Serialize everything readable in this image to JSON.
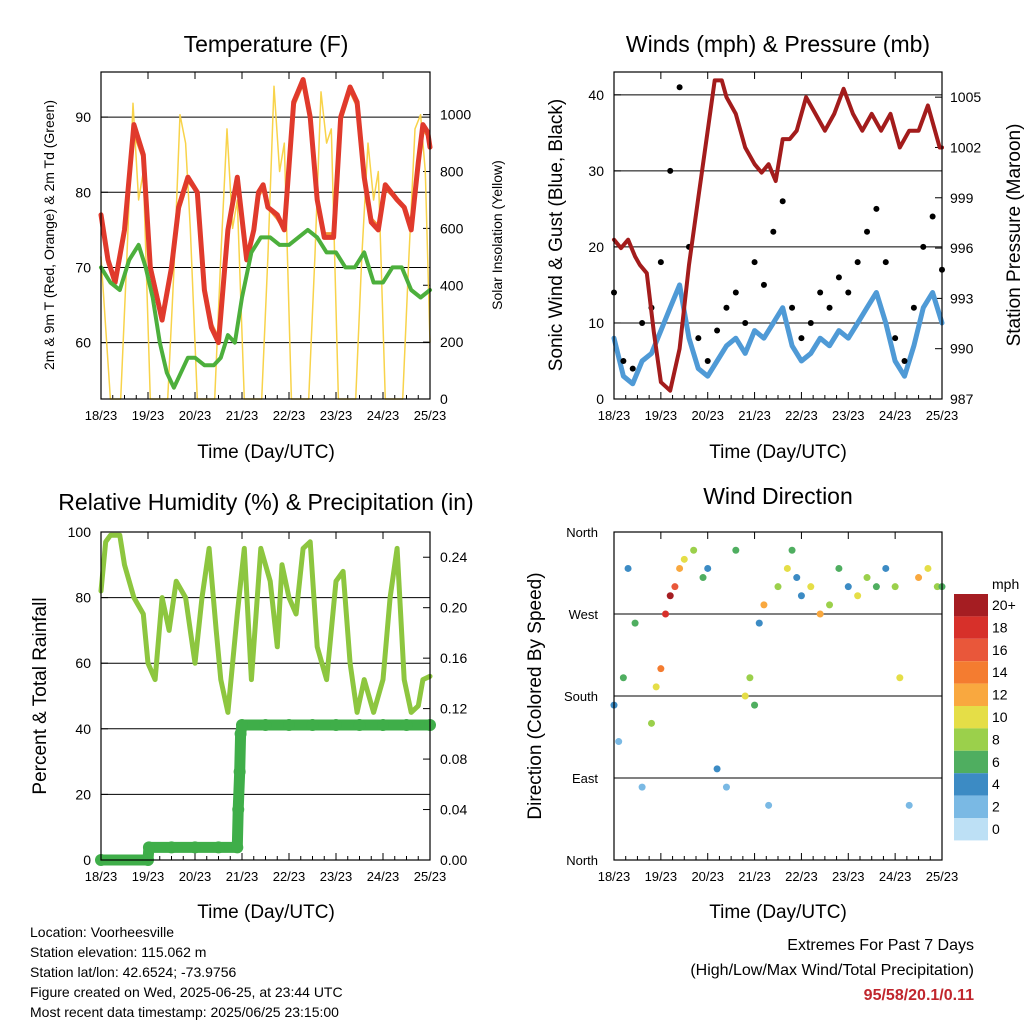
{
  "chart_data": [
    {
      "type": "line",
      "title": "Temperature (F)",
      "xlabel": "Time (Day/UTC)",
      "ylabel": "2m & 9m T (Red, Orange) & 2m Td (Green)",
      "ylabel_right": "Solar Insolation (Yellow)",
      "x_ticks": [
        "18/23",
        "19/23",
        "20/23",
        "21/23",
        "22/23",
        "23/23",
        "24/23",
        "25/23"
      ],
      "xlim": [
        0,
        7
      ],
      "ylim": [
        52.5,
        96
      ],
      "y_ticks": [
        60,
        70,
        80,
        90
      ],
      "y2lim": [
        0,
        1150
      ],
      "y2_ticks": [
        0,
        200,
        400,
        600,
        800,
        1000
      ],
      "grid": true,
      "series": [
        {
          "name": "2m T",
          "color": "#e03a2c",
          "axis": "left",
          "x": [
            0,
            0.15,
            0.3,
            0.5,
            0.7,
            0.9,
            1.05,
            1.3,
            1.5,
            1.65,
            1.85,
            2.05,
            2.2,
            2.35,
            2.5,
            2.7,
            2.9,
            3.1,
            3.25,
            3.35,
            3.45,
            3.55,
            3.75,
            3.9,
            4.1,
            4.3,
            4.45,
            4.6,
            4.75,
            4.95,
            5.1,
            5.3,
            5.45,
            5.6,
            5.75,
            5.9,
            6.05,
            6.3,
            6.45,
            6.6,
            6.75,
            6.85,
            6.95,
            7
          ],
          "y": [
            77,
            71,
            68,
            75,
            89,
            85,
            70,
            63,
            70,
            78,
            82,
            80,
            67,
            62,
            60,
            75,
            82,
            71,
            75,
            80,
            81,
            78,
            77,
            75,
            92,
            95,
            90,
            79,
            74,
            74,
            90,
            94,
            92,
            82,
            76,
            75,
            81,
            79,
            78,
            75,
            84,
            89,
            88,
            86
          ]
        },
        {
          "name": "9m T",
          "color": "#f39433",
          "axis": "left",
          "x": [
            0,
            0.15,
            0.3,
            0.5,
            0.7,
            0.9,
            1.05,
            1.3,
            1.5,
            1.65,
            1.85,
            2.05,
            2.2,
            2.35,
            2.5,
            2.7,
            2.9,
            3.1,
            3.25,
            3.35,
            3.45,
            3.55,
            3.75,
            3.9,
            4.1,
            4.3,
            4.45,
            4.6,
            4.75,
            4.95,
            5.1,
            5.3,
            5.45,
            5.6,
            5.75,
            5.9,
            6.05,
            6.3,
            6.45,
            6.6,
            6.75,
            6.85,
            6.95,
            7
          ],
          "y": [
            76.5,
            70.5,
            68.5,
            74.5,
            88,
            84.5,
            70.5,
            63.5,
            70,
            77.5,
            81.5,
            80,
            67.5,
            62.5,
            60.5,
            75,
            81.5,
            71.5,
            75,
            79.5,
            80.5,
            78,
            76.5,
            75,
            91.5,
            94.5,
            89.5,
            79,
            74.5,
            74.5,
            89.5,
            93.5,
            91.5,
            82,
            76.5,
            75.5,
            80.5,
            79,
            78,
            75.5,
            83.5,
            88.5,
            87.5,
            86
          ]
        },
        {
          "name": "2m Td",
          "color": "#4caf3c",
          "axis": "left",
          "x": [
            0,
            0.2,
            0.4,
            0.6,
            0.8,
            0.95,
            1.1,
            1.25,
            1.4,
            1.55,
            1.7,
            1.85,
            2.0,
            2.2,
            2.4,
            2.55,
            2.7,
            2.85,
            3.0,
            3.2,
            3.4,
            3.6,
            3.8,
            4.0,
            4.2,
            4.4,
            4.6,
            4.8,
            5.0,
            5.2,
            5.4,
            5.6,
            5.8,
            6.0,
            6.2,
            6.4,
            6.6,
            6.8,
            7
          ],
          "y": [
            70,
            68,
            67,
            71,
            73,
            70,
            66,
            60,
            56,
            54,
            56,
            58,
            58,
            57,
            57,
            58,
            61,
            60,
            66,
            72,
            74,
            74,
            73,
            73,
            74,
            75,
            74,
            72,
            72,
            70,
            70,
            72,
            68,
            68,
            70,
            70,
            67,
            66,
            67
          ]
        },
        {
          "name": "Solar Insolation",
          "color": "#f8d34a",
          "axis": "right",
          "x": [
            0,
            0.2,
            0.42,
            0.55,
            0.68,
            0.8,
            0.9,
            1.05,
            1.42,
            1.55,
            1.68,
            1.8,
            1.9,
            2.05,
            2.42,
            2.55,
            2.68,
            2.8,
            2.9,
            3.05,
            3.42,
            3.55,
            3.68,
            3.8,
            3.9,
            4.05,
            4.42,
            4.55,
            4.68,
            4.8,
            4.9,
            5.05,
            5.42,
            5.55,
            5.68,
            5.8,
            5.9,
            6.05,
            6.42,
            6.55,
            6.68,
            6.8,
            6.9,
            7
          ],
          "y": [
            500,
            0,
            0,
            500,
            1040,
            700,
            800,
            0,
            0,
            450,
            1000,
            900,
            600,
            0,
            0,
            500,
            950,
            600,
            700,
            0,
            0,
            500,
            1100,
            800,
            900,
            0,
            0,
            500,
            1080,
            900,
            950,
            0,
            0,
            500,
            900,
            700,
            800,
            0,
            0,
            500,
            950,
            1000,
            800,
            200
          ]
        }
      ]
    },
    {
      "type": "scatter",
      "title": "Winds (mph) & Pressure (mb)",
      "xlabel": "Time (Day/UTC)",
      "ylabel": "Sonic Wind & Gust (Blue, Black)",
      "ylabel_right": "Station Pressure (Maroon)",
      "x_ticks": [
        "18/23",
        "19/23",
        "20/23",
        "21/23",
        "22/23",
        "23/23",
        "24/23",
        "25/23"
      ],
      "xlim": [
        0,
        7
      ],
      "ylim": [
        0,
        43
      ],
      "y_ticks": [
        0,
        10,
        20,
        30,
        40
      ],
      "y2lim": [
        987,
        1006.5
      ],
      "y2_ticks": [
        987,
        990,
        993,
        996,
        999,
        1002,
        1005
      ],
      "grid": true,
      "series": [
        {
          "name": "Sonic Wind",
          "color": "#4f9ad6",
          "axis": "left",
          "x": [
            0,
            0.2,
            0.4,
            0.6,
            0.8,
            1.0,
            1.2,
            1.4,
            1.6,
            1.8,
            2.0,
            2.2,
            2.4,
            2.6,
            2.8,
            3.0,
            3.2,
            3.4,
            3.6,
            3.8,
            4.0,
            4.2,
            4.4,
            4.6,
            4.8,
            5.0,
            5.2,
            5.4,
            5.6,
            5.8,
            6.0,
            6.2,
            6.4,
            6.6,
            6.8,
            7
          ],
          "y": [
            8,
            3,
            2,
            5,
            6,
            9,
            12,
            15,
            8,
            4,
            3,
            5,
            7,
            8,
            6,
            9,
            8,
            10,
            12,
            7,
            5,
            6,
            8,
            7,
            9,
            8,
            10,
            12,
            14,
            10,
            5,
            3,
            7,
            12,
            14,
            10
          ]
        },
        {
          "name": "Gust",
          "color": "#000000",
          "axis": "left",
          "x": [
            0,
            0.2,
            0.4,
            0.6,
            0.8,
            1.0,
            1.2,
            1.4,
            1.6,
            1.8,
            2.0,
            2.2,
            2.4,
            2.6,
            2.8,
            3.0,
            3.2,
            3.4,
            3.6,
            3.8,
            4.0,
            4.2,
            4.4,
            4.6,
            4.8,
            5.0,
            5.2,
            5.4,
            5.6,
            5.8,
            6.0,
            6.2,
            6.4,
            6.6,
            6.8,
            7
          ],
          "y": [
            14,
            5,
            4,
            10,
            12,
            18,
            30,
            41,
            20,
            8,
            5,
            9,
            12,
            14,
            10,
            18,
            15,
            22,
            26,
            12,
            8,
            10,
            14,
            12,
            16,
            14,
            18,
            22,
            25,
            18,
            8,
            5,
            12,
            20,
            24,
            17
          ]
        },
        {
          "name": "Station Pressure",
          "color": "#a31c1c",
          "axis": "right",
          "x": [
            0,
            0.15,
            0.3,
            0.45,
            0.55,
            0.7,
            0.85,
            1.0,
            1.2,
            1.4,
            1.6,
            1.8,
            2.0,
            2.15,
            2.3,
            2.4,
            2.6,
            2.8,
            3.0,
            3.15,
            3.3,
            3.45,
            3.6,
            3.75,
            3.9,
            4.1,
            4.3,
            4.5,
            4.7,
            4.9,
            5.1,
            5.3,
            5.5,
            5.7,
            5.9,
            6.1,
            6.3,
            6.5,
            6.7,
            6.85,
            6.95,
            7
          ],
          "y": [
            996.5,
            996,
            996.5,
            995.5,
            995,
            994.5,
            991,
            988,
            987.5,
            990,
            995,
            999,
            1003,
            1006,
            1006,
            1005,
            1004,
            1002,
            1001,
            1000.5,
            1001,
            1000,
            1002.5,
            1002.5,
            1003,
            1005,
            1004,
            1003,
            1004,
            1005.5,
            1004,
            1003,
            1004,
            1003,
            1004,
            1002,
            1003,
            1003,
            1004.5,
            1003,
            1002,
            1002
          ]
        }
      ]
    },
    {
      "type": "line",
      "title": "Relative Humidity (%) & Precipitation (in)",
      "xlabel": "Time (Day/UTC)",
      "ylabel": "Percent & Total Rainfall",
      "x_ticks": [
        "18/23",
        "19/23",
        "20/23",
        "21/23",
        "22/23",
        "23/23",
        "24/23",
        "25/23"
      ],
      "xlim": [
        0,
        7
      ],
      "ylim": [
        0,
        100
      ],
      "y_ticks": [
        0,
        20,
        40,
        60,
        80,
        100
      ],
      "y2lim": [
        0,
        0.26
      ],
      "y2_ticks": [
        "0.00",
        "0.04",
        "0.08",
        "0.12",
        "0.16",
        "0.20",
        "0.24"
      ],
      "grid": true,
      "series": [
        {
          "name": "Relative Humidity",
          "color": "#8dc63f",
          "axis": "left",
          "x": [
            0,
            0.1,
            0.2,
            0.4,
            0.5,
            0.7,
            0.9,
            1.0,
            1.15,
            1.3,
            1.45,
            1.6,
            1.8,
            2.0,
            2.15,
            2.3,
            2.45,
            2.55,
            2.7,
            2.9,
            3.05,
            3.2,
            3.4,
            3.6,
            3.75,
            3.85,
            4.0,
            4.15,
            4.3,
            4.45,
            4.6,
            4.8,
            5.0,
            5.15,
            5.3,
            5.45,
            5.6,
            5.8,
            6.0,
            6.15,
            6.3,
            6.45,
            6.6,
            6.75,
            6.85,
            7
          ],
          "y": [
            82,
            97,
            99,
            99,
            90,
            80,
            75,
            60,
            55,
            80,
            70,
            85,
            80,
            60,
            80,
            95,
            70,
            55,
            45,
            75,
            95,
            55,
            95,
            85,
            65,
            90,
            80,
            75,
            95,
            97,
            65,
            55,
            85,
            88,
            60,
            45,
            55,
            45,
            55,
            80,
            95,
            55,
            45,
            47,
            55,
            56
          ]
        },
        {
          "name": "Total Rainfall",
          "color": "#3fae49",
          "axis": "right",
          "x": [
            0,
            1.0,
            1.02,
            1.5,
            2.0,
            2.5,
            2.9,
            2.92,
            2.95,
            2.97,
            3.0,
            3.5,
            4.0,
            4.5,
            5.0,
            5.5,
            6.0,
            6.5,
            7
          ],
          "y": [
            0,
            0,
            0.01,
            0.01,
            0.01,
            0.01,
            0.01,
            0.04,
            0.07,
            0.1,
            0.107,
            0.107,
            0.107,
            0.107,
            0.107,
            0.107,
            0.107,
            0.107,
            0.107
          ]
        }
      ]
    },
    {
      "type": "scatter",
      "title": "Wind Direction",
      "xlabel": "Time (Day/UTC)",
      "ylabel": "Direction (Colored By Speed)",
      "x_ticks": [
        "18/23",
        "19/23",
        "20/23",
        "21/23",
        "22/23",
        "23/23",
        "24/23",
        "25/23"
      ],
      "xlim": [
        0,
        7
      ],
      "y_ticks": [
        "North",
        "East",
        "South",
        "West",
        "North"
      ],
      "ylim": [
        0,
        360
      ],
      "colorbar": {
        "title": "mph",
        "labels": [
          "20+",
          "18",
          "16",
          "14",
          "12",
          "10",
          "8",
          "6",
          "4",
          "2",
          "0"
        ],
        "colors": [
          "#a51d22",
          "#d7302a",
          "#e9573a",
          "#f47c30",
          "#f9a83f",
          "#e5de47",
          "#9bd04b",
          "#4fae60",
          "#3c8bc4",
          "#7ab9e4",
          "#bde0f5"
        ]
      },
      "series": [
        {
          "name": "Wind Direction",
          "x": [
            0,
            0.1,
            0.2,
            0.3,
            0.45,
            0.6,
            0.8,
            0.9,
            1.0,
            1.1,
            1.2,
            1.3,
            1.4,
            1.5,
            1.7,
            1.9,
            2.0,
            2.2,
            2.4,
            2.6,
            2.8,
            2.9,
            3.0,
            3.1,
            3.2,
            3.3,
            3.5,
            3.7,
            3.8,
            3.9,
            4.0,
            4.2,
            4.4,
            4.6,
            4.8,
            5.0,
            5.2,
            5.4,
            5.6,
            5.8,
            6.0,
            6.1,
            6.3,
            6.5,
            6.7,
            6.9,
            7
          ],
          "y": [
            170,
            130,
            200,
            320,
            260,
            80,
            150,
            190,
            210,
            270,
            290,
            300,
            320,
            330,
            340,
            310,
            320,
            100,
            80,
            340,
            180,
            200,
            170,
            260,
            280,
            60,
            300,
            320,
            340,
            310,
            290,
            300,
            270,
            280,
            320,
            300,
            290,
            310,
            300,
            320,
            300,
            200,
            60,
            310,
            320,
            300,
            300
          ],
          "speed": [
            4,
            2,
            6,
            3,
            5,
            2,
            8,
            10,
            14,
            18,
            20,
            16,
            12,
            10,
            8,
            6,
            4,
            3,
            2,
            5,
            10,
            8,
            6,
            4,
            12,
            2,
            8,
            10,
            6,
            4,
            3,
            10,
            12,
            8,
            6,
            4,
            10,
            8,
            6,
            4,
            8,
            10,
            2,
            12,
            10,
            8,
            6
          ]
        }
      ]
    }
  ],
  "info": {
    "location": "Location: Voorheesville",
    "elevation": "Station elevation: 115.062 m",
    "latlon": "Station lat/lon: 42.6524; -73.9756",
    "created": "Figure created on Wed, 2025-06-25, at 23:44 UTC",
    "recent": "Most recent data timestamp: 2025/06/25 23:15:00"
  },
  "extremes": {
    "line1": "Extremes For Past 7 Days",
    "line2": "(High/Low/Max Wind/Total Precipitation)",
    "value": "95/58/20.1/0.11"
  }
}
